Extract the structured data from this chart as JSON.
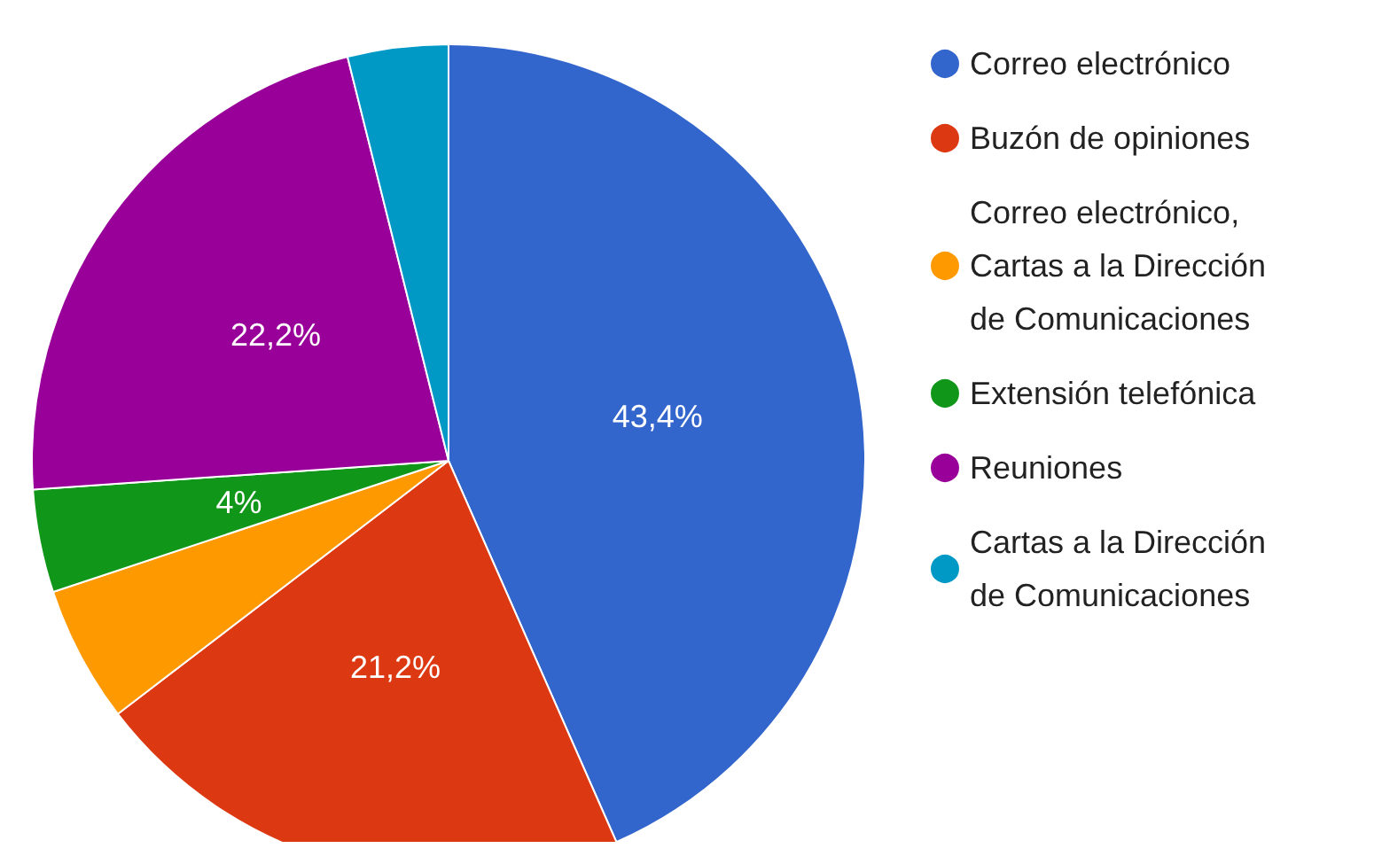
{
  "chart_data": {
    "type": "pie",
    "categories": [
      "Correo electrónico",
      "Buzón de opiniones",
      "Correo electrónico, Cartas a la Dirección de Comunicaciones",
      "Extensión telefónica",
      "Reuniones",
      "Cartas a la Dirección de Comunicaciones"
    ],
    "values": [
      43.4,
      21.2,
      5.3,
      4,
      22.2,
      3.9
    ],
    "value_labels": [
      "43,4%",
      "21,2%",
      null,
      "4%",
      "22,2%",
      null
    ],
    "colors": [
      "#3366cc",
      "#dc3912",
      "#ff9900",
      "#109618",
      "#990099",
      "#0099c6"
    ],
    "legend": "right"
  }
}
